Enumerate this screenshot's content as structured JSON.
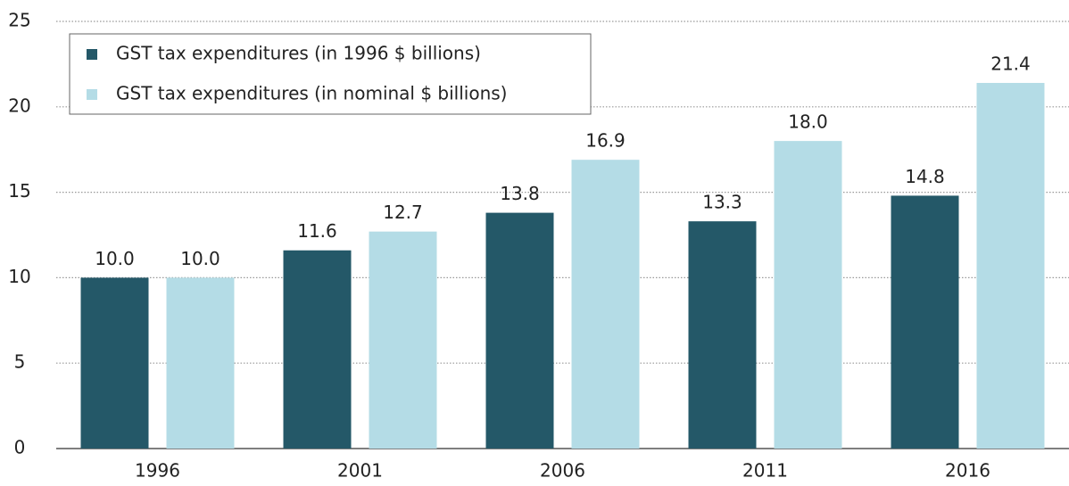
{
  "chart_data": {
    "type": "bar",
    "categories": [
      "1996",
      "2001",
      "2006",
      "2011",
      "2016"
    ],
    "series": [
      {
        "name": "GST tax expenditures (in 1996 $ billions)",
        "color": "#245868",
        "values": [
          10.0,
          11.6,
          13.8,
          13.3,
          14.8
        ],
        "value_labels": [
          "10.0",
          "11.6",
          "13.8",
          "13.3",
          "14.8"
        ]
      },
      {
        "name": "GST tax expenditures (in nominal $ billions)",
        "color": "#b4dce6",
        "values": [
          10.0,
          12.7,
          16.9,
          18.0,
          21.4
        ],
        "value_labels": [
          "10.0",
          "12.7",
          "16.9",
          "18.0",
          "21.4"
        ]
      }
    ],
    "ylim": [
      0,
      25
    ],
    "yticks": [
      0,
      5,
      10,
      15,
      20,
      25
    ],
    "grid": true,
    "legend": "top-left"
  }
}
